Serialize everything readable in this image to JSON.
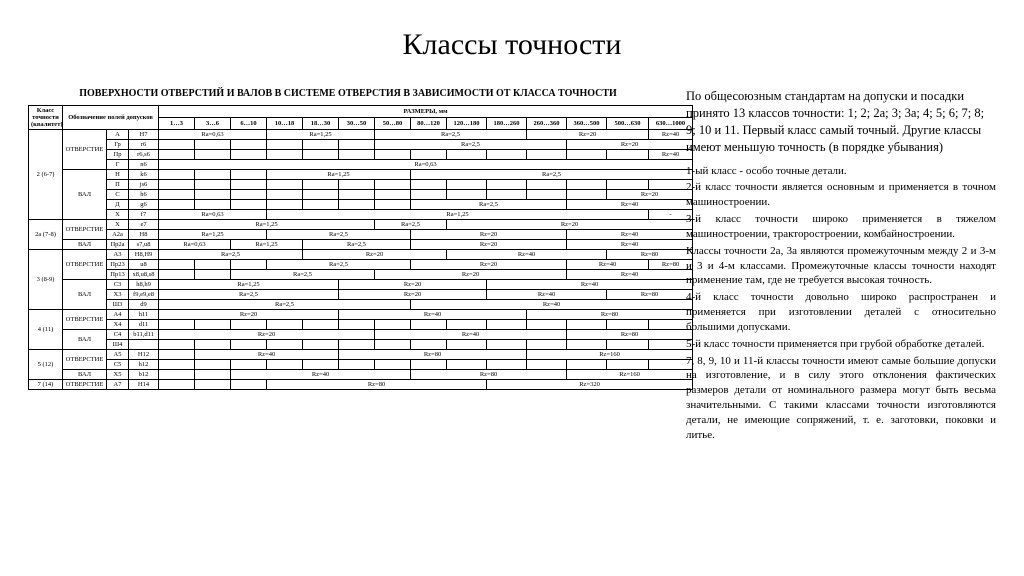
{
  "title": "Классы точности",
  "table": {
    "caption": "ПОВЕРХНОСТИ ОТВЕРСТИЙ И ВАЛОВ В СИСТЕМЕ ОТВЕРСТИЯ В ЗАВИСИМОСТИ ОТ КЛАССА ТОЧНОСТИ",
    "head": {
      "col_a": "Класс точности (квалитет)",
      "col_b": "Обозначение полей допусков",
      "col_c": "РАЗМЕРЫ, мм",
      "ranges": [
        "1…3",
        "3…6",
        "6…10",
        "10…18",
        "18…30",
        "30…50",
        "50…80",
        "80…120",
        "120…180",
        "180…260",
        "260…360",
        "360…500",
        "500…630",
        "630…1000"
      ]
    },
    "groups": [
      {
        "class": "2 (6-7)",
        "rows": [
          {
            "kind": "ОТВЕРСТИЕ",
            "mark": "A",
            "fit": "H7",
            "vals": [
              "Ra=0,63",
              "",
              "",
              "Ra=1,25",
              "",
              "",
              "Ra=2,5",
              "",
              "",
              "",
              "Rz=20",
              "",
              "",
              "Rz=40"
            ]
          },
          {
            "kind": "",
            "mark": "Гр",
            "fit": "r6",
            "vals": [
              "",
              "",
              "",
              "",
              "",
              "",
              "Ra=2,5",
              "",
              "",
              "",
              "",
              "Rz=20",
              "",
              ""
            ]
          },
          {
            "kind": "",
            "mark": "Пр",
            "fit": "r6,s6",
            "vals": [
              "",
              "",
              "",
              "",
              "",
              "",
              "",
              "",
              "",
              "",
              "",
              "",
              "",
              "Rz=40"
            ]
          },
          {
            "kind": "",
            "mark": "Г",
            "fit": "n6",
            "vals": [
              "Ra=0,63",
              "",
              "",
              "",
              "",
              "",
              "",
              "",
              "",
              "",
              "",
              "",
              "",
              ""
            ]
          },
          {
            "kind": "ВАЛ",
            "mark": "Н",
            "fit": "k6",
            "vals": [
              "",
              "",
              "",
              "Ra=1,25",
              "",
              "",
              "",
              "Ra=2,5",
              "",
              "",
              "",
              "",
              "",
              ""
            ]
          },
          {
            "kind": "",
            "mark": "П",
            "fit": "js6",
            "vals": [
              "",
              "",
              "",
              "",
              "",
              "",
              "",
              "",
              "",
              "",
              "",
              "",
              "",
              ""
            ]
          },
          {
            "kind": "",
            "mark": "С",
            "fit": "h6",
            "vals": [
              "",
              "",
              "",
              "",
              "",
              "",
              "",
              "",
              "",
              "",
              "",
              "",
              "Rz=20",
              ""
            ]
          },
          {
            "kind": "",
            "mark": "Д",
            "fit": "g6",
            "vals": [
              "",
              "",
              "",
              "",
              "",
              "",
              "",
              "Ra=2,5",
              "",
              "",
              "",
              "Rz=40",
              "",
              ""
            ]
          },
          {
            "kind": "",
            "mark": "X",
            "fit": "f7",
            "vals": [
              "Ra=0,63",
              "",
              "",
              "Ra=1,25",
              "",
              "",
              "",
              "",
              "",
              "",
              "",
              "",
              "",
              "-"
            ]
          }
        ]
      },
      {
        "class": "2а (7-8)",
        "rows": [
          {
            "kind": "ОТВЕРСТИЕ",
            "mark": "X",
            "fit": "e7",
            "vals": [
              "Ra=1,25",
              "",
              "",
              "",
              "",
              "",
              "Ra=2,5",
              "",
              "Rz=20",
              "",
              "",
              "",
              "",
              ""
            ]
          },
          {
            "kind": "",
            "mark": "A2a",
            "fit": "H8",
            "vals": [
              "Ra=1,25",
              "",
              "",
              "Ra=2,5",
              "",
              "",
              "",
              "Rz=20",
              "",
              "",
              "",
              "Rz=40",
              "",
              ""
            ]
          },
          {
            "kind": "ВАЛ",
            "mark": "Пр2а",
            "fit": "s7,u8",
            "vals": [
              "Ra=0,63",
              "",
              "Ra=1,25",
              "",
              "Ra=2,5",
              "",
              "",
              "Rz=20",
              "",
              "",
              "",
              "Rz=40",
              "",
              ""
            ]
          }
        ]
      },
      {
        "class": "3 (8-9)",
        "rows": [
          {
            "kind": "ОТВЕРСТИЕ",
            "mark": "A3",
            "fit": "H8,H9",
            "vals": [
              "Ra=2,5",
              "",
              "",
              "",
              "Rz=20",
              "",
              "",
              "",
              "Rz=40",
              "",
              "",
              "",
              "Rz=80",
              ""
            ]
          },
          {
            "kind": "",
            "mark": "Пр23",
            "fit": "u8",
            "vals": [
              "",
              "",
              "",
              "Ra=2,5",
              "",
              "",
              "",
              "Rz=20",
              "",
              "",
              "",
              "Rz=40",
              "",
              "Rz=80"
            ]
          },
          {
            "kind": "",
            "mark": "Пр13",
            "fit": "x8,u8,s8",
            "vals": [
              "",
              "",
              "Ra=2,5",
              "",
              "",
              "",
              "Rz=20",
              "",
              "",
              "",
              "",
              "Rz=40",
              "",
              ""
            ]
          },
          {
            "kind": "ВАЛ",
            "mark": "С3",
            "fit": "h8,h9",
            "vals": [
              "Ra=1,25",
              "",
              "",
              "",
              "",
              "Rz=20",
              "",
              "",
              "",
              "Rz=40",
              "",
              "",
              "",
              ""
            ]
          },
          {
            "kind": "",
            "mark": "X3",
            "fit": "f9,e9,e8",
            "vals": [
              "Ra=2,5",
              "",
              "",
              "",
              "",
              "Rz=20",
              "",
              "",
              "",
              "Rz=40",
              "",
              "",
              "Rz=80",
              ""
            ]
          },
          {
            "kind": "",
            "mark": "Ш3",
            "fit": "d9",
            "vals": [
              "Ra=2,5",
              "",
              "",
              "",
              "",
              "",
              "",
              "Rz=40",
              "",
              "",
              "",
              "",
              "",
              ""
            ]
          }
        ]
      },
      {
        "class": "4 (11)",
        "rows": [
          {
            "kind": "ОТВЕРСТИЕ",
            "mark": "A4",
            "fit": "h11",
            "vals": [
              "Rz=20",
              "",
              "",
              "",
              "",
              "Rz=40",
              "",
              "",
              "",
              "",
              "Rz=80",
              "",
              "",
              ""
            ]
          },
          {
            "kind": "",
            "mark": "X4",
            "fit": "d11",
            "vals": [
              "",
              "",
              "",
              "",
              "",
              "",
              "",
              "",
              "",
              "",
              "",
              "",
              "",
              ""
            ]
          },
          {
            "kind": "ВАЛ",
            "mark": "C4",
            "fit": "b11,d11",
            "vals": [
              "Rz=20",
              "",
              "",
              "",
              "",
              "",
              "Rz=40",
              "",
              "",
              "",
              "",
              "Rz=80",
              "",
              ""
            ]
          },
          {
            "kind": "",
            "mark": "Ш4",
            "fit": "",
            "vals": [
              "",
              "",
              "",
              "",
              "",
              "",
              "",
              "",
              "",
              "",
              "",
              "",
              "",
              ""
            ]
          }
        ]
      },
      {
        "class": "5 (12)",
        "rows": [
          {
            "kind": "ОТВЕРСТИЕ",
            "mark": "A5",
            "fit": "H12",
            "vals": [
              "",
              "Rz=40",
              "",
              "",
              "",
              "Rz=80",
              "",
              "",
              "",
              "",
              "Rz=160",
              "",
              "",
              ""
            ]
          },
          {
            "kind": "",
            "mark": "C5",
            "fit": "h12",
            "vals": [
              "",
              "",
              "",
              "",
              "",
              "",
              "",
              "",
              "",
              "",
              "",
              "",
              "",
              ""
            ]
          },
          {
            "kind": "ВАЛ",
            "mark": "X5",
            "fit": "b12",
            "vals": [
              "",
              "",
              "Rz=40",
              "",
              "",
              "",
              "",
              "Rz=80",
              "",
              "",
              "",
              "Rz=160",
              "",
              ""
            ]
          }
        ]
      },
      {
        "class": "7 (14)",
        "rows": [
          {
            "kind": "ОТВЕРСТИЕ",
            "mark": "A7",
            "fit": "H14",
            "vals": [
              "",
              "",
              "",
              "Rz=80",
              "",
              "",
              "",
              "",
              "",
              "Rz=320",
              "",
              "",
              "",
              ""
            ]
          }
        ]
      }
    ]
  },
  "right": {
    "intro": "По общесоюзным стандартам на допуски и посадки принято 13 классов точности: 1; 2; 2а; 3; 3а; 4; 5; 6; 7; 8; 9; 10 и 11. Первый класс самый точный. Другие классы имеют меньшую точность (в порядке убывания)",
    "paras": [
      "1-ый класс - особо точные детали.",
      "2-й класс точности является основным и применяется в точном машиностроении.",
      "3-й класс точности широко применяется в тяжелом машиностроении, тракторостроении, комбайностроении.",
      "Классы точности 2а, 3а являются промежуточным между 2 и 3-м и 3 и 4-м классами. Промежуточные классы точности находят применение там, где не требуется высокая точность.",
      "4-й класс точности довольно широко распространен и применяется при изготовлении деталей с относительно большими допусками.",
      "5-й класс точности применяется при грубой обработке деталей.",
      "7, 8, 9, 10 и 11-й классы точности имеют самые большие допуски на изготовление, и в силу этого отклонения фактических размеров детали от номинального размера могут быть весьма значительными. С такими классами точности изготовляются детали, не имеющие сопряжений, т. е. заготовки, поковки и литье."
    ]
  }
}
